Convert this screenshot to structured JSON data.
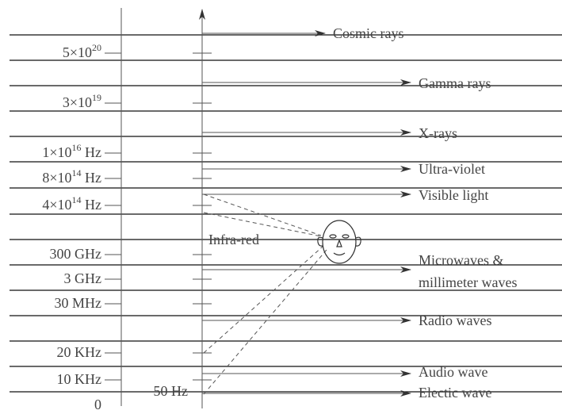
{
  "frequencies": [
    {
      "base": "5×10",
      "exp": "20"
    },
    {
      "base": "3×10",
      "exp": "19"
    },
    {
      "base": "1×10",
      "exp": "16",
      "unit": " Hz"
    },
    {
      "base": "8×10",
      "exp": "14",
      "unit": " Hz"
    },
    {
      "base": "4×10",
      "exp": "14",
      "unit": " Hz"
    },
    {
      "base": "300 GHz"
    },
    {
      "base": "3 GHz"
    },
    {
      "base": "30 MHz"
    },
    {
      "base": "20 KHz"
    },
    {
      "base": "10 KHz"
    },
    {
      "base": "0"
    },
    {
      "base": "50 Hz"
    }
  ],
  "bands": [
    "Cosmic rays",
    "Gamma rays",
    "X-rays",
    "Ultra-violet",
    "Visible light",
    "Infra-red",
    "Microwaves &",
    "millimeter waves",
    "Radio waves",
    "Audio wave",
    "Electic wave"
  ]
}
